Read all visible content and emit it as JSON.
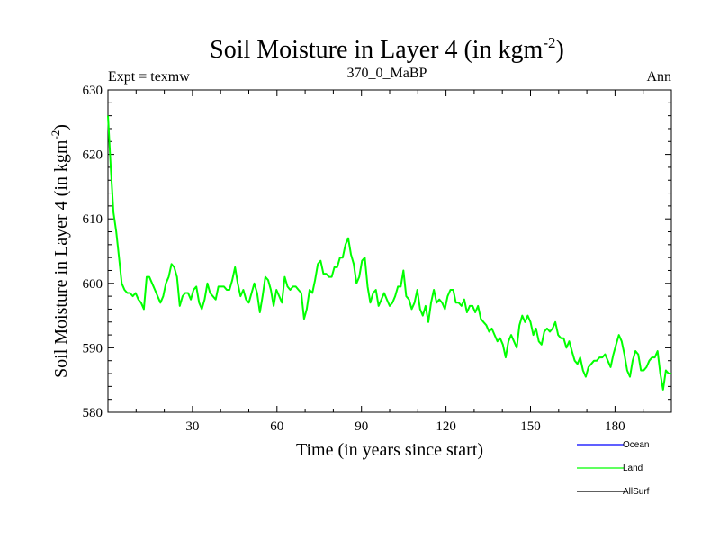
{
  "header": {
    "title_main": "Soil Moisture in Layer 4 (in kgm",
    "title_sup": "-2",
    "title_close": ")",
    "left": "Expt = texmw",
    "center": "370_0_MaBP",
    "right": "Ann"
  },
  "chart_data": {
    "type": "line",
    "title": "Soil Moisture in Layer 4 (in kgm-2)",
    "xlabel": "Time (in years since start)",
    "ylabel": "Soil Moisture in Layer 4 (in kgm-2)",
    "ylabel_parts": {
      "main": "Soil Moisture in Layer 4 (in kgm",
      "sup": "-2",
      "close": ")"
    },
    "xlim": [
      0,
      200
    ],
    "ylim": [
      580,
      630
    ],
    "xticks": [
      30,
      60,
      90,
      120,
      150,
      180
    ],
    "yticks": [
      580,
      590,
      600,
      610,
      620,
      630
    ],
    "series": [
      {
        "name": "Ocean",
        "color": "#0000ff",
        "values": []
      },
      {
        "name": "Land",
        "color": "#00ff00",
        "values": [
          626,
          618,
          611,
          608,
          604,
          600,
          599,
          598.5,
          598.5,
          598,
          598.5,
          597.5,
          597,
          596,
          601,
          601,
          600,
          599,
          598,
          597,
          598,
          600,
          601,
          603,
          602.5,
          601,
          596.5,
          598,
          598.5,
          598.5,
          597.5,
          599,
          599.5,
          597,
          596,
          597.5,
          600,
          598.5,
          598,
          597.5,
          599.5,
          599.5,
          599.5,
          599,
          599,
          600.5,
          602.5,
          600,
          598,
          599,
          597.5,
          597,
          598.5,
          600,
          598.5,
          595.5,
          598,
          601,
          600.5,
          599,
          596.5,
          599,
          598,
          597,
          601,
          599.5,
          599,
          599.5,
          599.5,
          599,
          598.5,
          594.5,
          596,
          599,
          598.5,
          600.5,
          603,
          603.5,
          601.5,
          601.5,
          601,
          601,
          602.5,
          602.5,
          604,
          604,
          606,
          607,
          604.5,
          603,
          600,
          601,
          603.5,
          604,
          599.5,
          597,
          598.5,
          599,
          596.5,
          597.5,
          598.5,
          597.5,
          596.5,
          597,
          598,
          599.5,
          599.5,
          602,
          598,
          597.5,
          596,
          597,
          599,
          596,
          595,
          596.5,
          594,
          597,
          599,
          597,
          597.5,
          597,
          596,
          598,
          599,
          599,
          597,
          597,
          596.5,
          597.5,
          595.5,
          596.5,
          596.5,
          595.5,
          596.5,
          594.5,
          594,
          593.5,
          592.5,
          593,
          592,
          591,
          591.5,
          590.5,
          588.5,
          591,
          592,
          591,
          590,
          593.5,
          595,
          594,
          595,
          594,
          592,
          593,
          591,
          590.5,
          592.5,
          593,
          592.5,
          593,
          594,
          592,
          591.5,
          591.5,
          590,
          591,
          589.5,
          588,
          587.5,
          588.5,
          586.5,
          585.5,
          587,
          587.5,
          588,
          588,
          588.5,
          588.5,
          589,
          588,
          587,
          589,
          590.5,
          592,
          591,
          589,
          586.5,
          585.5,
          588,
          589.5,
          589,
          586.5,
          586.5,
          587,
          588,
          588.5,
          588.5,
          589.5,
          586,
          583.5,
          586.5,
          586,
          586
        ]
      },
      {
        "name": "AllSurf",
        "color": "#000000",
        "values": []
      }
    ]
  }
}
